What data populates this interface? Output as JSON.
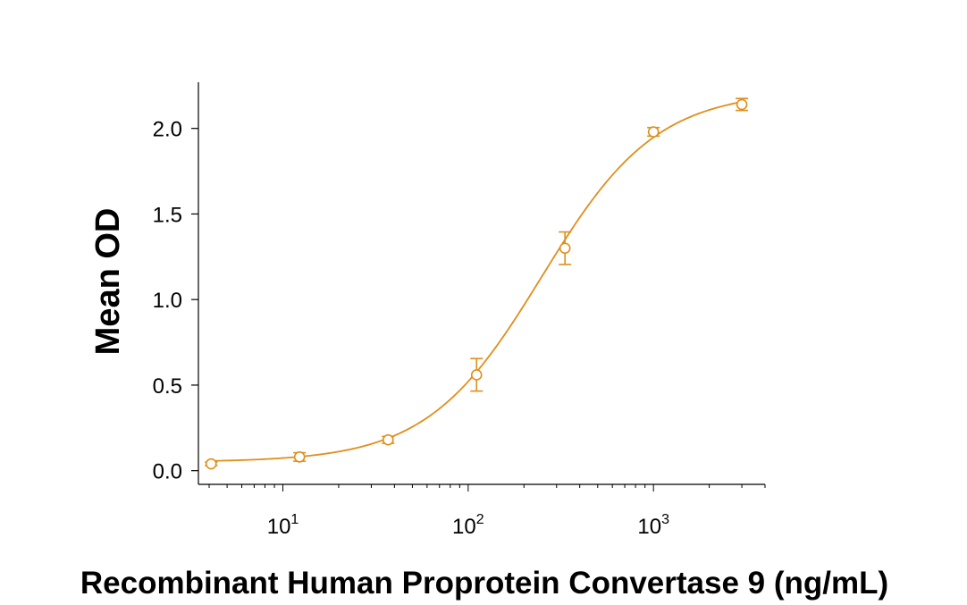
{
  "chart_data": {
    "type": "scatter",
    "title": "",
    "xlabel": "Recombinant Human Proprotein Convertase 9 (ng/mL)",
    "ylabel": "Mean OD",
    "x_scale": "log",
    "xlim": [
      3.5,
      4000
    ],
    "ylim": [
      -0.08,
      2.27
    ],
    "y_ticks": [
      {
        "value": 0.0,
        "label": "0.0"
      },
      {
        "value": 0.5,
        "label": "0.5"
      },
      {
        "value": 1.0,
        "label": "1.0"
      },
      {
        "value": 1.5,
        "label": "1.5"
      },
      {
        "value": 2.0,
        "label": "2.0"
      }
    ],
    "x_ticks": [
      {
        "value": 10,
        "base": "10",
        "exp": "1"
      },
      {
        "value": 100,
        "base": "10",
        "exp": "2"
      },
      {
        "value": 1000,
        "base": "10",
        "exp": "3"
      }
    ],
    "color": "#E08E1B",
    "grid": false,
    "series": [
      {
        "points": [
          {
            "x": 4.1,
            "y": 0.04,
            "err": 0.01
          },
          {
            "x": 12.3,
            "y": 0.08,
            "err": 0.025
          },
          {
            "x": 37,
            "y": 0.18,
            "err": 0.02
          },
          {
            "x": 111,
            "y": 0.56,
            "err": 0.095
          },
          {
            "x": 333,
            "y": 1.3,
            "err": 0.095
          },
          {
            "x": 1000,
            "y": 1.98,
            "err": 0.025
          },
          {
            "x": 3000,
            "y": 2.14,
            "err": 0.035
          }
        ],
        "fit": {
          "model": "4PL",
          "bottom": 0.05,
          "top": 2.22,
          "ec50": 250,
          "hill": 1.4
        }
      }
    ]
  }
}
